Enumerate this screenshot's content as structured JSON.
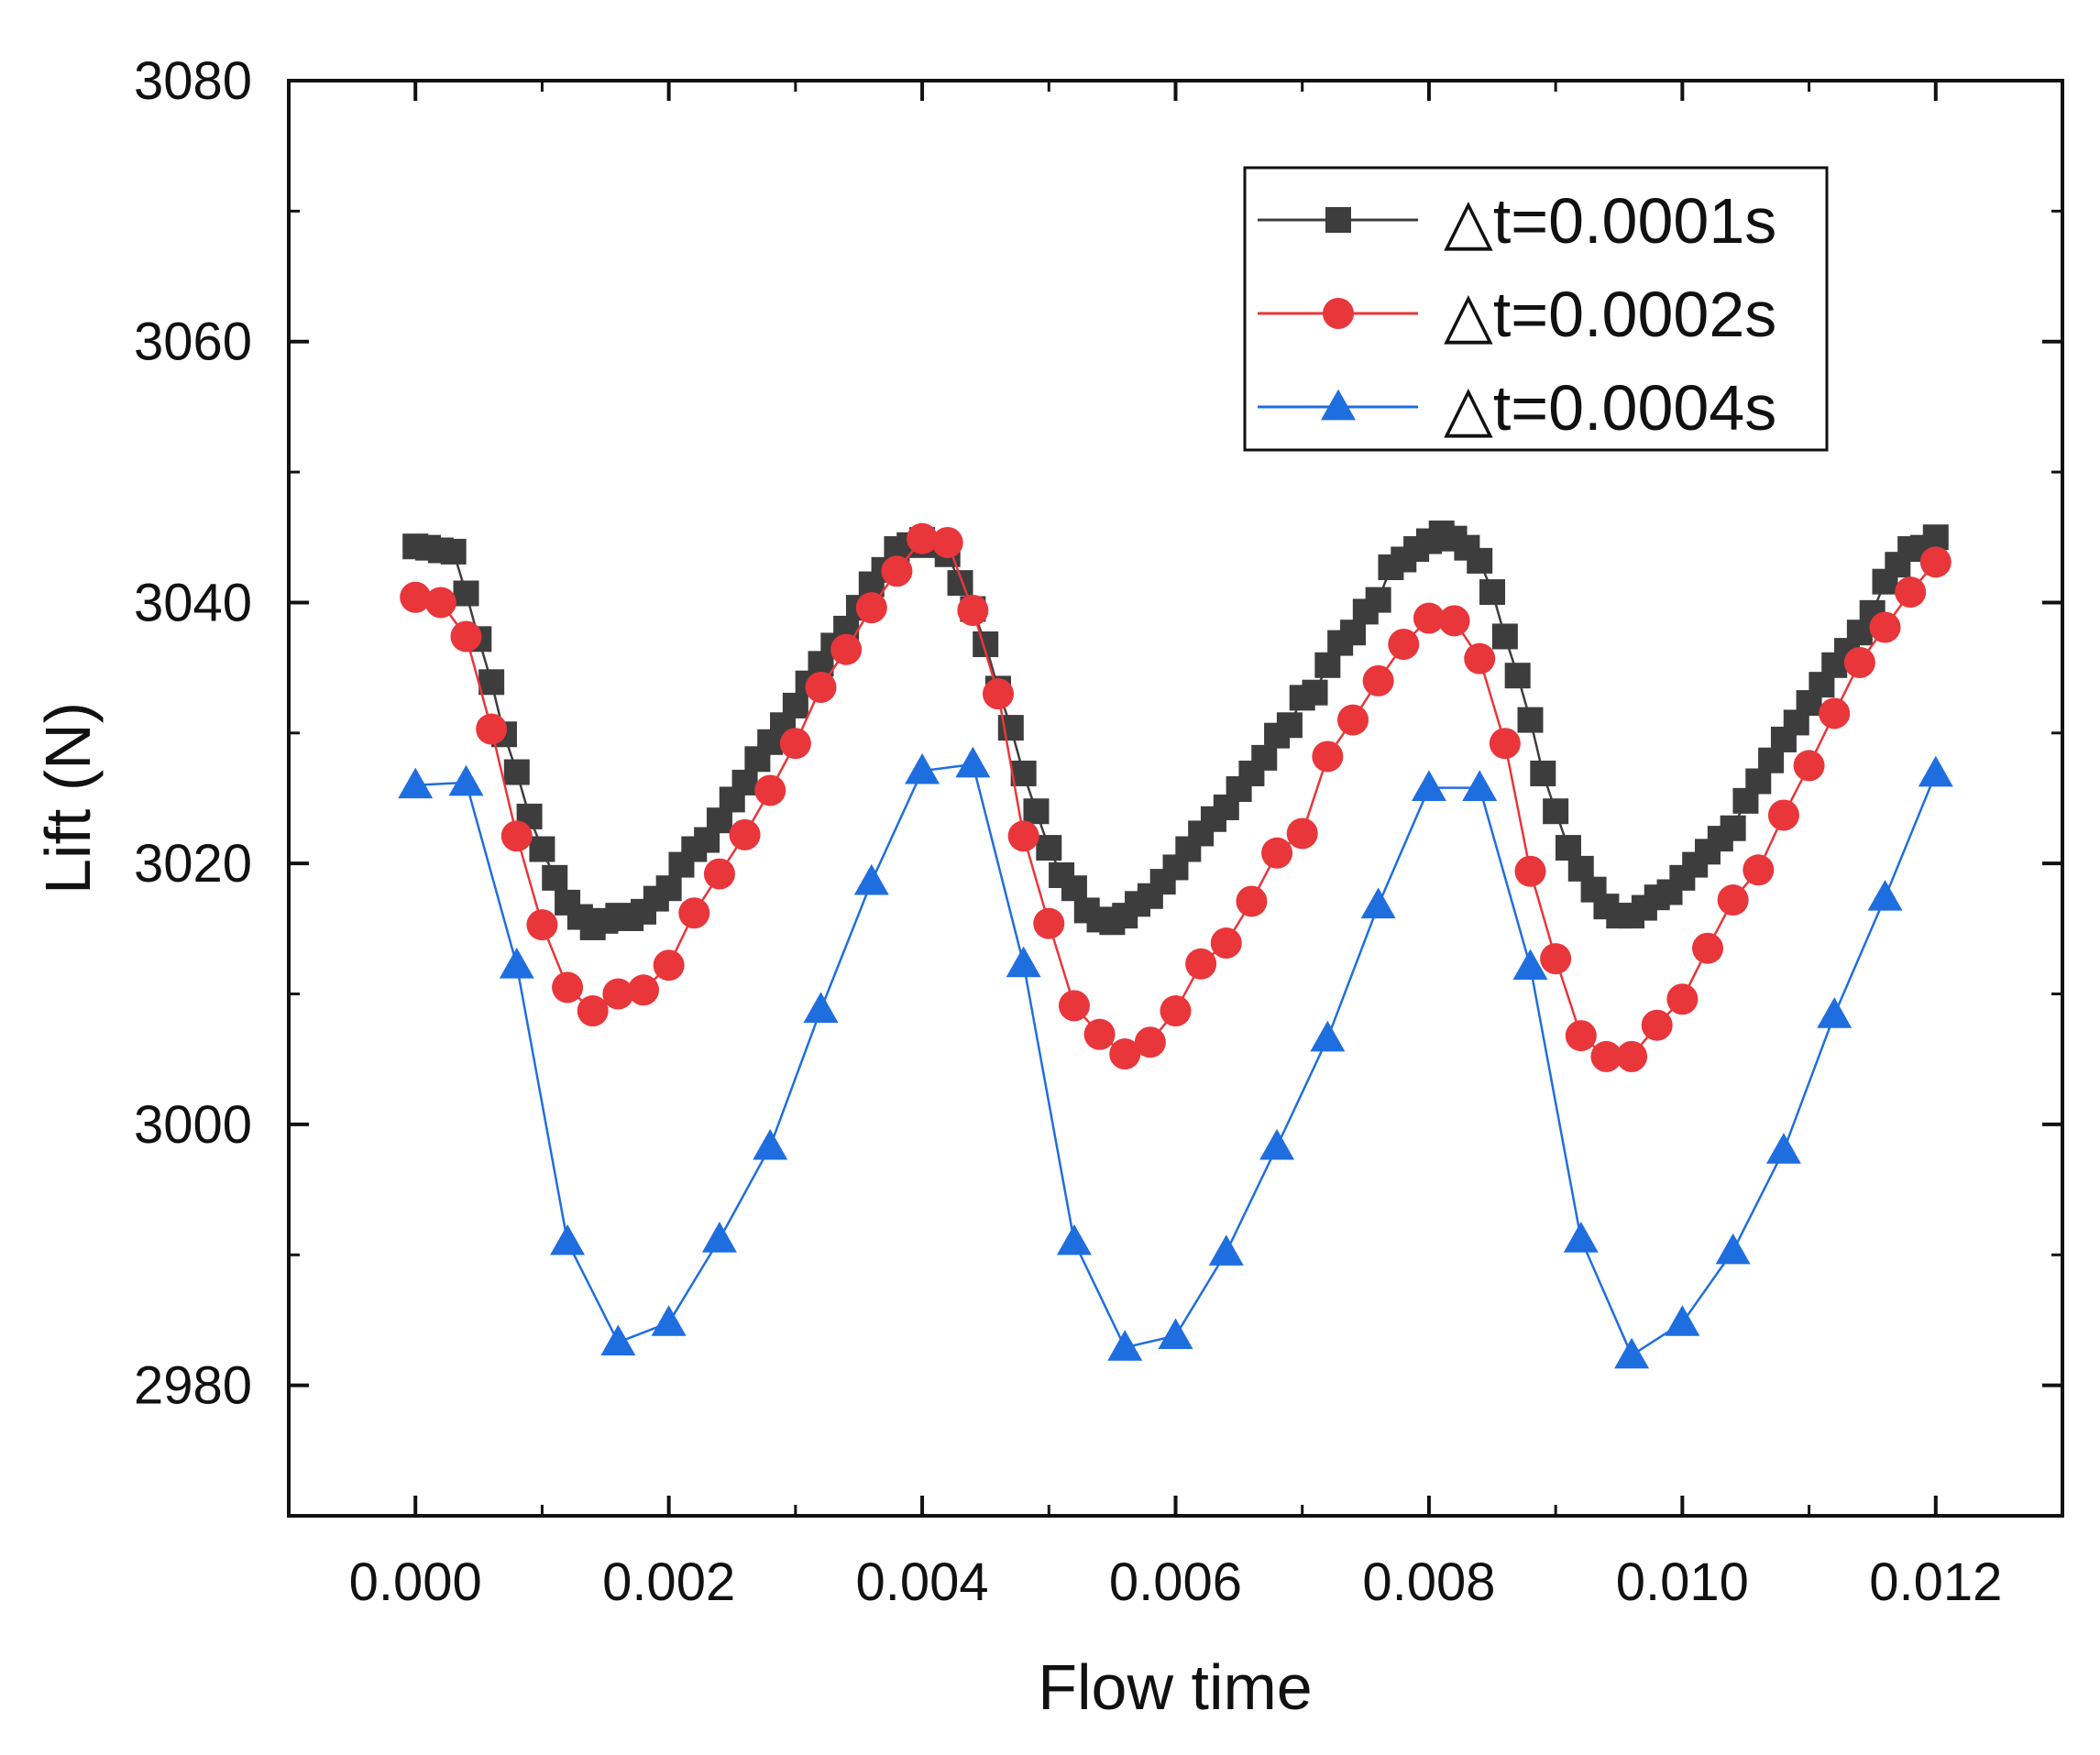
{
  "chart_data": {
    "type": "line",
    "title": "",
    "xlabel": "Flow time",
    "ylabel": "Lift (N)",
    "xlim": [
      -0.001,
      0.013
    ],
    "ylim": [
      2970,
      3080
    ],
    "xticks": [
      0.0,
      0.002,
      0.004,
      0.006,
      0.008,
      0.01,
      0.012
    ],
    "xtick_labels": [
      "0.000",
      "0.002",
      "0.004",
      "0.006",
      "0.008",
      "0.010",
      "0.012"
    ],
    "yticks": [
      2980,
      3000,
      3020,
      3040,
      3060,
      3080
    ],
    "ytick_labels": [
      "2980",
      "3000",
      "3020",
      "3040",
      "3060",
      "3080"
    ],
    "grid": false,
    "legend_position": "top-right",
    "series": [
      {
        "name": "△t=0.0001s",
        "color": "#3d3d3d",
        "marker": "square",
        "x": [
          0.0,
          0.0001,
          0.0002,
          0.0003,
          0.0004,
          0.0005,
          0.0006,
          0.0007,
          0.0008,
          0.0009,
          0.001,
          0.0011,
          0.0012,
          0.0013,
          0.0014,
          0.0015,
          0.0016,
          0.0017,
          0.0018,
          0.0019,
          0.002,
          0.0021,
          0.0022,
          0.0023,
          0.0024,
          0.0025,
          0.0026,
          0.0027,
          0.0028,
          0.0029,
          0.003,
          0.0031,
          0.0032,
          0.0033,
          0.0034,
          0.0035,
          0.0036,
          0.0037,
          0.0038,
          0.0039,
          0.004,
          0.0041,
          0.0042,
          0.0043,
          0.0044,
          0.0045,
          0.0046,
          0.0047,
          0.0048,
          0.0049,
          0.005,
          0.0051,
          0.0052,
          0.0053,
          0.0054,
          0.0055,
          0.0056,
          0.0057,
          0.0058,
          0.0059,
          0.006,
          0.0061,
          0.0062,
          0.0063,
          0.0064,
          0.0065,
          0.0066,
          0.0067,
          0.0068,
          0.0069,
          0.007,
          0.0071,
          0.0072,
          0.0073,
          0.0074,
          0.0075,
          0.0076,
          0.0077,
          0.0078,
          0.0079,
          0.008,
          0.0081,
          0.0082,
          0.0083,
          0.0084,
          0.0085,
          0.0086,
          0.0087,
          0.0088,
          0.0089,
          0.009,
          0.0091,
          0.0092,
          0.0093,
          0.0094,
          0.0095,
          0.0096,
          0.0097,
          0.0098,
          0.0099,
          0.01,
          0.0101,
          0.0102,
          0.0103,
          0.0104,
          0.0105,
          0.0106,
          0.0107,
          0.0108,
          0.0109,
          0.011,
          0.0111,
          0.0112,
          0.0113,
          0.0114,
          0.0115,
          0.0116,
          0.0117,
          0.0118,
          0.0119,
          0.012
        ],
        "values": [
          3044.3,
          3044.2,
          3044.0,
          3043.9,
          3040.7,
          3037.2,
          3033.9,
          3029.9,
          3027.0,
          3023.6,
          3021.1,
          3018.9,
          3017.0,
          3015.9,
          3015.1,
          3015.6,
          3016.0,
          3015.8,
          3016.3,
          3017.3,
          3018.1,
          3019.9,
          3021.1,
          3021.8,
          3023.3,
          3024.9,
          3026.2,
          3028.0,
          3029.3,
          3030.6,
          3032.1,
          3033.8,
          3035.3,
          3036.7,
          3038.0,
          3039.6,
          3041.4,
          3042.5,
          3044.1,
          3044.4,
          3044.8,
          3044.4,
          3043.7,
          3041.5,
          3039.5,
          3036.8,
          3033.4,
          3030.4,
          3026.9,
          3024.0,
          3021.2,
          3019.1,
          3018.1,
          3016.4,
          3015.7,
          3015.5,
          3016.0,
          3016.9,
          3017.5,
          3018.6,
          3019.7,
          3021.1,
          3022.3,
          3023.4,
          3024.3,
          3025.7,
          3026.9,
          3028.1,
          3029.8,
          3030.6,
          3032.7,
          3033.1,
          3035.2,
          3036.9,
          3037.7,
          3039.3,
          3040.2,
          3042.7,
          3043.3,
          3044.1,
          3044.7,
          3045.3,
          3044.9,
          3044.2,
          3043.2,
          3040.8,
          3037.4,
          3034.4,
          3031.0,
          3026.9,
          3024.0,
          3021.2,
          3019.6,
          3018.0,
          3016.7,
          3016.0,
          3016.0,
          3016.6,
          3017.4,
          3017.8,
          3018.9,
          3019.9,
          3020.9,
          3021.9,
          3022.7,
          3024.8,
          3026.3,
          3027.9,
          3029.5,
          3030.8,
          3032.3,
          3033.7,
          3035.2,
          3036.3,
          3037.7,
          3039.2,
          3041.6,
          3042.9,
          3044.1,
          3044.2,
          3045.0
        ]
      },
      {
        "name": "△t=0.0002s",
        "color": "#e8363a",
        "marker": "circle",
        "x": [
          0.0,
          0.0002,
          0.0004,
          0.0006,
          0.0008,
          0.001,
          0.0012,
          0.0014,
          0.0016,
          0.0018,
          0.002,
          0.0022,
          0.0024,
          0.0026,
          0.0028,
          0.003,
          0.0032,
          0.0034,
          0.0036,
          0.0038,
          0.004,
          0.0042,
          0.0044,
          0.0046,
          0.0048,
          0.005,
          0.0052,
          0.0054,
          0.0056,
          0.0058,
          0.006,
          0.0062,
          0.0064,
          0.0066,
          0.0068,
          0.007,
          0.0072,
          0.0074,
          0.0076,
          0.0078,
          0.008,
          0.0082,
          0.0084,
          0.0086,
          0.0088,
          0.009,
          0.0092,
          0.0094,
          0.0096,
          0.0098,
          0.01,
          0.0102,
          0.0104,
          0.0106,
          0.0108,
          0.011,
          0.0112,
          0.0114,
          0.0116,
          0.0118,
          0.012
        ],
        "values": [
          3040.4,
          3040.0,
          3037.4,
          3030.3,
          3022.1,
          3015.3,
          3010.5,
          3008.7,
          3010.0,
          3010.3,
          3012.2,
          3016.2,
          3019.2,
          3022.2,
          3025.6,
          3029.2,
          3033.5,
          3036.4,
          3039.6,
          3042.4,
          3044.9,
          3044.6,
          3039.4,
          3033.0,
          3022.1,
          3015.4,
          3009.1,
          3006.9,
          3005.4,
          3006.3,
          3008.7,
          3012.3,
          3013.9,
          3017.1,
          3020.8,
          3022.3,
          3028.2,
          3031.0,
          3034.0,
          3036.8,
          3038.8,
          3038.6,
          3035.7,
          3029.2,
          3019.4,
          3012.7,
          3006.8,
          3005.2,
          3005.2,
          3007.6,
          3009.6,
          3013.5,
          3017.2,
          3019.5,
          3023.7,
          3027.5,
          3031.5,
          3035.4,
          3038.1,
          3040.8,
          3043.1
        ]
      },
      {
        "name": "△t=0.0004s",
        "color": "#1f6ee0",
        "marker": "triangle",
        "x": [
          0.0,
          0.0004,
          0.0008,
          0.0012,
          0.0016,
          0.002,
          0.0024,
          0.0028,
          0.0032,
          0.0036,
          0.004,
          0.0044,
          0.0048,
          0.0052,
          0.0056,
          0.006,
          0.0064,
          0.0068,
          0.0072,
          0.0076,
          0.008,
          0.0084,
          0.0088,
          0.0092,
          0.0096,
          0.01,
          0.0104,
          0.0108,
          0.0112,
          0.0116,
          0.012
        ],
        "values": [
          3026.0,
          3026.2,
          3012.2,
          2991.0,
          2983.3,
          2984.8,
          2991.2,
          2998.3,
          3008.8,
          3018.6,
          3027.1,
          3027.6,
          3012.3,
          2991.0,
          2982.9,
          2983.8,
          2990.2,
          2998.3,
          3006.6,
          3016.8,
          3025.8,
          3025.8,
          3012.1,
          2991.2,
          2982.3,
          2984.8,
          2990.3,
          2998.0,
          3008.4,
          3017.4,
          3026.9
        ]
      }
    ]
  }
}
